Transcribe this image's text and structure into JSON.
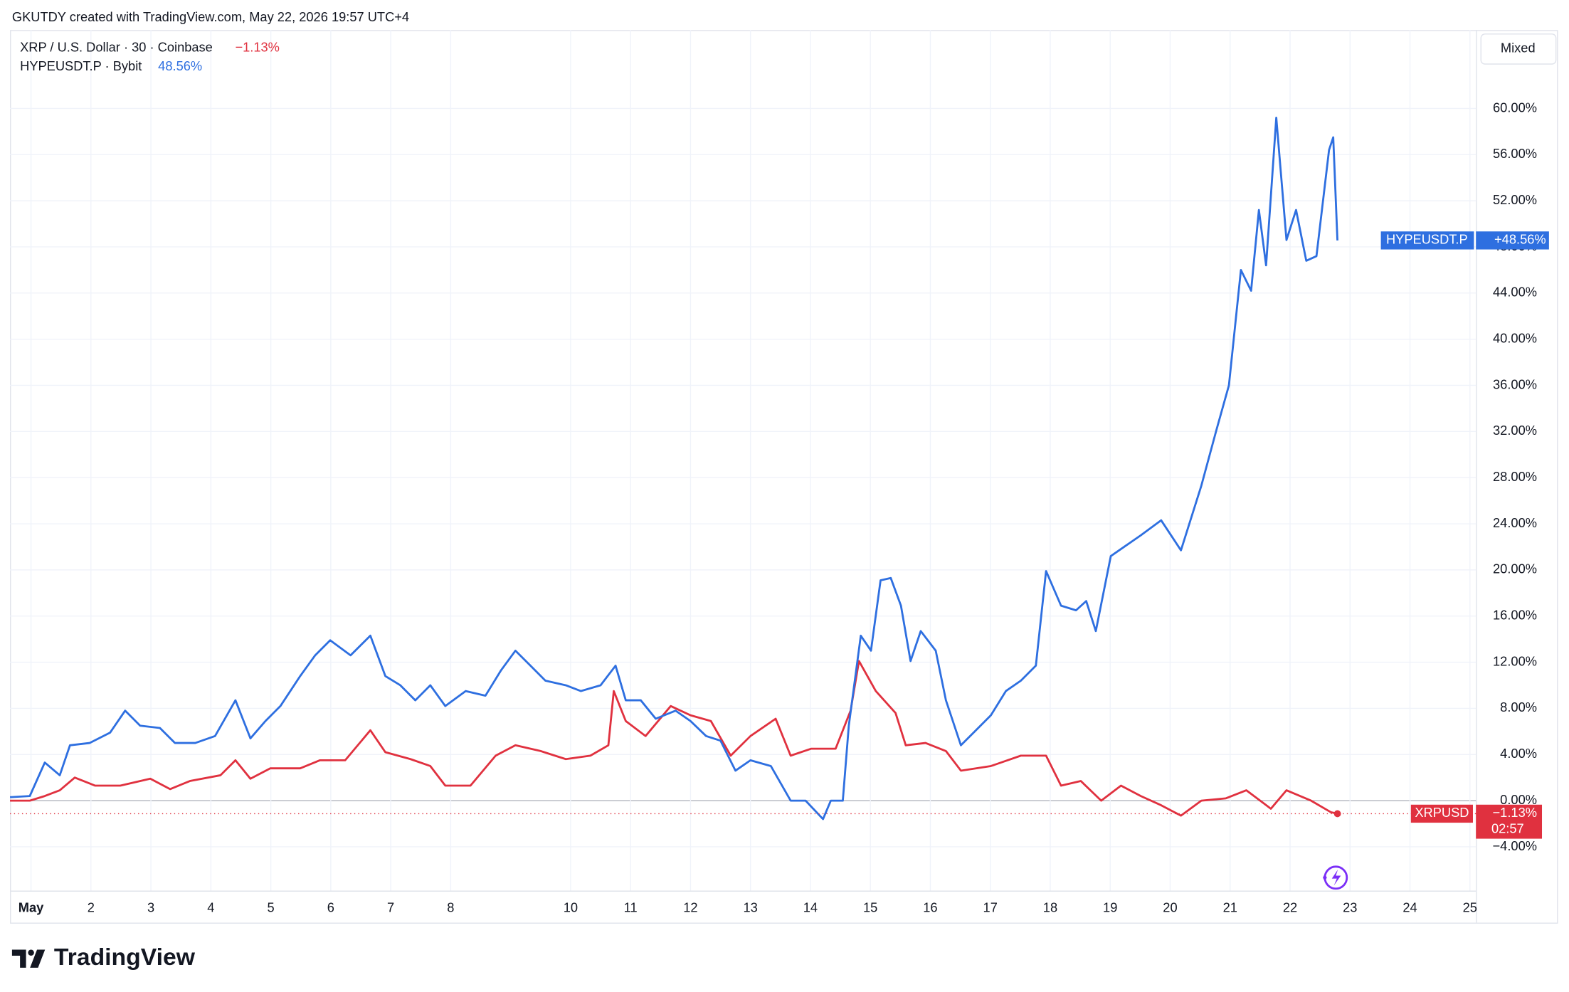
{
  "chart_data": {
    "type": "line",
    "header": "GKUTDY created with TradingView.com, May 22, 2026 19:57 UTC+4",
    "scale_mode": "Mixed",
    "logo": "TradingView",
    "xlim": [
      0.65,
      25.1
    ],
    "xticks": [
      {
        "value": 1,
        "label": "May"
      },
      2,
      3,
      4,
      5,
      6,
      7,
      8,
      10,
      11,
      12,
      13,
      14,
      15,
      16,
      17,
      18,
      19,
      20,
      21,
      22,
      23,
      24,
      25
    ],
    "ylim": [
      -7.8,
      66.8
    ],
    "yticks": [
      {
        "value": -4,
        "label": "−4.00%"
      },
      {
        "value": 0,
        "label": "0.00%"
      },
      {
        "value": 4,
        "label": "4.00%"
      },
      {
        "value": 8,
        "label": "8.00%"
      },
      {
        "value": 12,
        "label": "12.00%"
      },
      {
        "value": 16,
        "label": "16.00%"
      },
      {
        "value": 20,
        "label": "20.00%"
      },
      {
        "value": 24,
        "label": "24.00%"
      },
      {
        "value": 28,
        "label": "28.00%"
      },
      {
        "value": 32,
        "label": "32.00%"
      },
      {
        "value": 36,
        "label": "36.00%"
      },
      {
        "value": 40,
        "label": "40.00%"
      },
      {
        "value": 44,
        "label": "44.00%"
      },
      {
        "value": 48,
        "label": "48.00%"
      },
      {
        "value": 52,
        "label": "52.00%"
      },
      {
        "value": 56,
        "label": "56.00%"
      },
      {
        "value": 60,
        "label": "60.00%"
      }
    ],
    "grid": true,
    "series": [
      {
        "name": "XRP / U.S. Dollar · 30 · Coinbase",
        "legend_change": "−1.13%",
        "tag": "XRPUSD",
        "tag_value": "−1.13%",
        "countdown": "02:57",
        "color": "#e0313f",
        "x": [
          0.65,
          0.98,
          1.23,
          1.48,
          1.73,
          2.07,
          2.49,
          2.99,
          3.32,
          3.65,
          4.16,
          4.41,
          4.66,
          4.99,
          5.49,
          5.82,
          6.24,
          6.66,
          6.91,
          7.33,
          7.66,
          7.91,
          8.33,
          8.75,
          9.08,
          9.5,
          9.92,
          10.33,
          10.63,
          10.72,
          10.92,
          11.25,
          11.67,
          12.0,
          12.34,
          12.67,
          13.0,
          13.42,
          13.67,
          14.01,
          14.42,
          14.67,
          14.81,
          15.09,
          15.42,
          15.59,
          15.92,
          16.26,
          16.51,
          17.01,
          17.51,
          17.93,
          18.18,
          18.51,
          18.85,
          19.18,
          19.51,
          19.85,
          20.18,
          20.52,
          20.93,
          21.27,
          21.68,
          21.94,
          22.35,
          22.68,
          22.79
        ],
        "values": [
          0,
          0,
          0.4,
          0.9,
          2.0,
          1.3,
          1.3,
          1.9,
          1.0,
          1.7,
          2.2,
          3.5,
          1.9,
          2.8,
          2.8,
          3.5,
          3.5,
          6.1,
          4.2,
          3.6,
          3.0,
          1.3,
          1.3,
          3.9,
          4.8,
          4.3,
          3.6,
          3.9,
          4.8,
          9.5,
          6.9,
          5.6,
          8.2,
          7.4,
          6.9,
          3.9,
          5.6,
          7.1,
          3.9,
          4.5,
          4.5,
          7.8,
          12.1,
          9.5,
          7.6,
          4.8,
          5.0,
          4.3,
          2.6,
          3.0,
          3.9,
          3.9,
          1.3,
          1.7,
          0,
          1.3,
          0.4,
          -0.4,
          -1.3,
          0,
          0.2,
          0.9,
          -0.7,
          0.9,
          0,
          -1.0,
          -1.13
        ]
      },
      {
        "name": "HYPEUSDT.P · Bybit",
        "legend_change": "48.56%",
        "tag": "HYPEUSDT.P",
        "tag_value": "+48.56%",
        "color": "#2e6fe0",
        "x": [
          0.65,
          0.98,
          1.23,
          1.48,
          1.65,
          1.98,
          2.32,
          2.57,
          2.82,
          3.15,
          3.4,
          3.74,
          4.07,
          4.41,
          4.66,
          4.91,
          5.16,
          5.49,
          5.74,
          5.99,
          6.33,
          6.66,
          6.91,
          7.16,
          7.41,
          7.66,
          7.91,
          8.25,
          8.58,
          8.84,
          9.08,
          9.33,
          9.58,
          9.92,
          10.17,
          10.5,
          10.75,
          10.92,
          11.17,
          11.42,
          11.75,
          12.0,
          12.26,
          12.5,
          12.75,
          13.0,
          13.34,
          13.67,
          13.92,
          14.21,
          14.34,
          14.54,
          14.64,
          14.84,
          15.01,
          15.17,
          15.34,
          15.51,
          15.67,
          15.84,
          16.09,
          16.26,
          16.51,
          16.76,
          17.01,
          17.26,
          17.51,
          17.76,
          17.93,
          18.18,
          18.43,
          18.6,
          18.76,
          19.01,
          19.26,
          19.51,
          19.85,
          20.18,
          20.52,
          20.77,
          20.98,
          21.18,
          21.35,
          21.48,
          21.6,
          21.77,
          21.94,
          22.1,
          22.27,
          22.44,
          22.65,
          22.72,
          22.79
        ],
        "values": [
          0.3,
          0.4,
          3.3,
          2.2,
          4.8,
          5.0,
          5.9,
          7.8,
          6.5,
          6.3,
          5.0,
          5.0,
          5.6,
          8.7,
          5.4,
          6.9,
          8.2,
          10.8,
          12.6,
          13.9,
          12.6,
          14.3,
          10.8,
          10.0,
          8.7,
          10.0,
          8.2,
          9.5,
          9.1,
          11.3,
          13.0,
          11.7,
          10.4,
          10.0,
          9.5,
          10.0,
          11.7,
          8.7,
          8.7,
          7.1,
          7.8,
          6.9,
          5.6,
          5.2,
          2.6,
          3.5,
          3.0,
          0,
          0,
          -1.6,
          0,
          0,
          6.5,
          14.3,
          13.0,
          19.1,
          19.3,
          16.9,
          12.1,
          14.7,
          13.0,
          8.7,
          4.8,
          6.1,
          7.4,
          9.5,
          10.4,
          11.7,
          19.9,
          16.9,
          16.5,
          17.3,
          14.7,
          21.2,
          22.1,
          23.0,
          24.3,
          21.7,
          27.3,
          32.1,
          36.0,
          46.0,
          44.2,
          51.2,
          46.4,
          59.2,
          48.6,
          51.2,
          46.8,
          47.2,
          56.4,
          57.5,
          48.56
        ]
      }
    ]
  }
}
